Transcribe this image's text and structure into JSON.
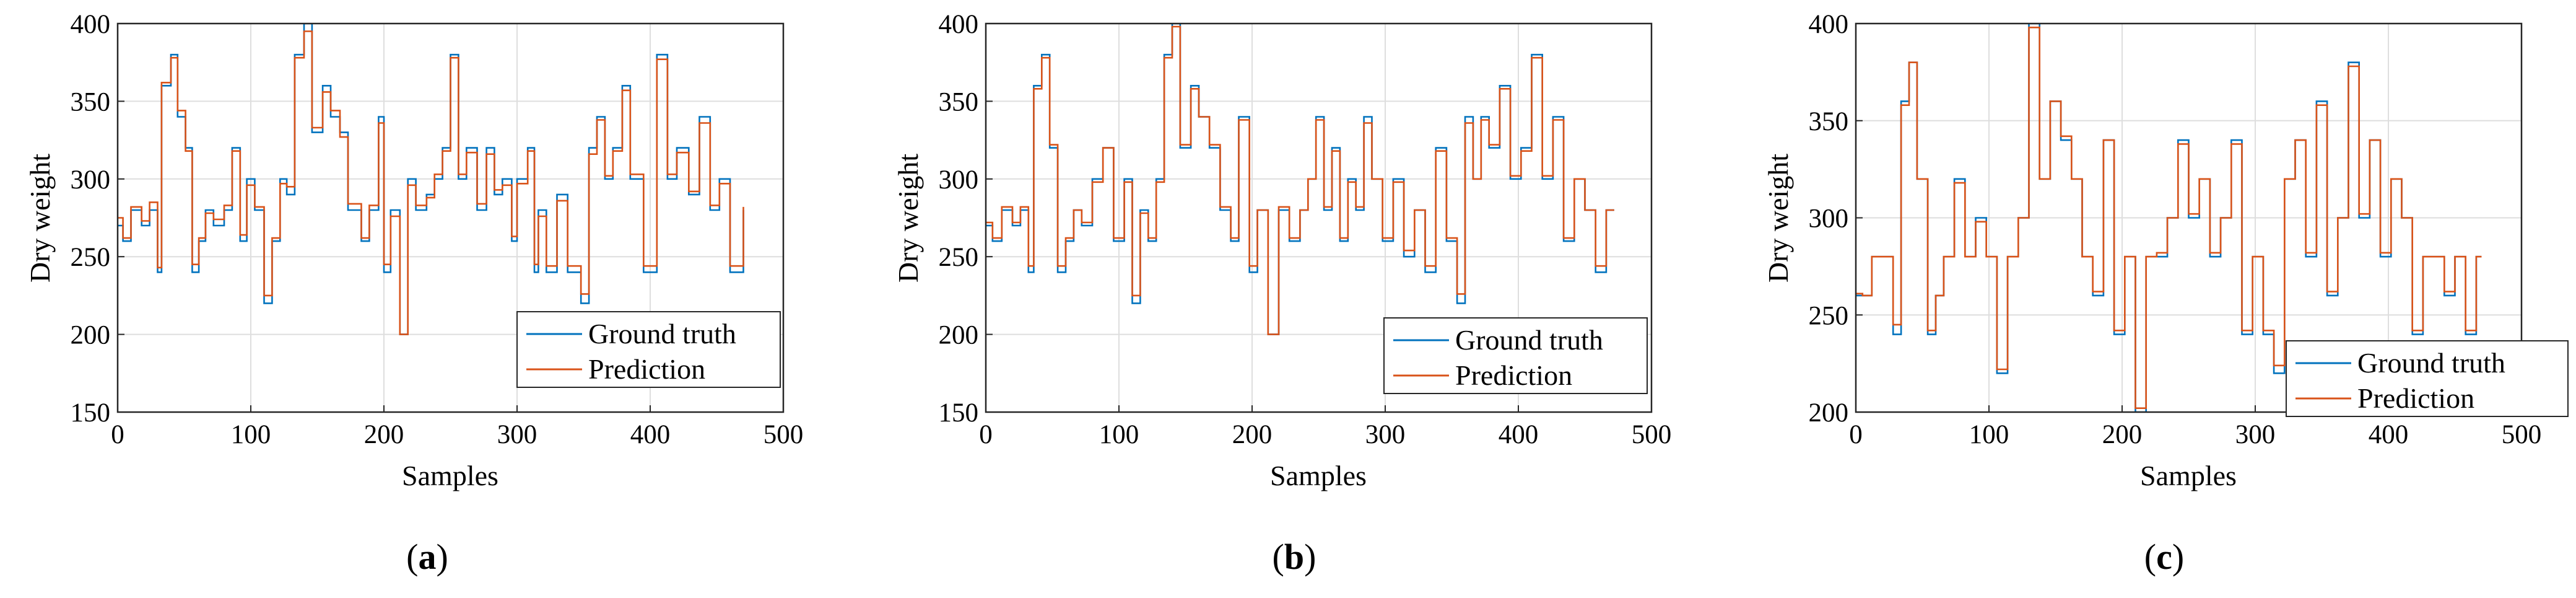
{
  "chart_data": [
    {
      "panel": "(a)",
      "type": "line",
      "xlabel": "Samples",
      "ylabel": "Dry weight",
      "xlim": [
        0,
        500
      ],
      "ylim": [
        150,
        400
      ],
      "xticks": [
        0,
        100,
        200,
        300,
        400,
        500
      ],
      "yticks": [
        150,
        200,
        250,
        300,
        350,
        400
      ],
      "grid": true,
      "legend_position": "bottom-right",
      "colors": {
        "Ground truth": "#0072BD",
        "Prediction": "#D95319"
      },
      "series": [
        {
          "name": "Ground truth",
          "x": [
            0,
            4,
            10,
            18,
            24,
            30,
            33,
            40,
            45,
            51,
            56,
            61,
            66,
            72,
            80,
            86,
            92,
            97,
            103,
            110,
            116,
            122,
            127,
            133,
            140,
            146,
            154,
            160,
            167,
            173,
            183,
            189,
            196,
            200,
            205,
            212,
            218,
            224,
            232,
            238,
            244,
            250,
            256,
            262,
            270,
            277,
            283,
            289,
            296,
            300,
            308,
            313,
            316,
            322,
            330,
            338,
            348,
            354,
            360,
            366,
            372,
            379,
            385,
            395,
            405,
            413,
            420,
            429,
            437,
            445,
            452,
            460,
            470
          ],
          "values": [
            270,
            260,
            280,
            270,
            280,
            240,
            360,
            380,
            340,
            320,
            240,
            260,
            280,
            270,
            280,
            320,
            260,
            300,
            280,
            220,
            260,
            300,
            290,
            380,
            400,
            330,
            360,
            340,
            330,
            280,
            260,
            280,
            340,
            240,
            280,
            200,
            300,
            280,
            290,
            300,
            320,
            380,
            300,
            320,
            280,
            320,
            290,
            300,
            260,
            300,
            320,
            240,
            280,
            240,
            290,
            240,
            220,
            320,
            340,
            300,
            320,
            360,
            300,
            240,
            380,
            300,
            320,
            290,
            340,
            280,
            300,
            240,
            280
          ]
        },
        {
          "name": "Prediction",
          "x": [
            0,
            4,
            10,
            18,
            24,
            30,
            33,
            40,
            45,
            51,
            56,
            61,
            66,
            72,
            80,
            86,
            92,
            97,
            103,
            110,
            116,
            122,
            127,
            133,
            140,
            146,
            154,
            160,
            167,
            173,
            183,
            189,
            196,
            200,
            205,
            212,
            218,
            224,
            232,
            238,
            244,
            250,
            256,
            262,
            270,
            277,
            283,
            289,
            296,
            300,
            308,
            313,
            316,
            322,
            330,
            338,
            348,
            354,
            360,
            366,
            372,
            379,
            385,
            395,
            405,
            413,
            420,
            429,
            437,
            445,
            452,
            460,
            470
          ],
          "values": [
            275,
            262,
            282,
            273,
            285,
            243,
            362,
            378,
            344,
            318,
            245,
            262,
            278,
            274,
            283,
            318,
            264,
            296,
            282,
            225,
            262,
            297,
            295,
            378,
            395,
            333,
            356,
            344,
            327,
            284,
            262,
            283,
            336,
            245,
            276,
            200,
            296,
            283,
            288,
            303,
            318,
            378,
            303,
            317,
            284,
            316,
            293,
            296,
            263,
            297,
            318,
            245,
            276,
            244,
            286,
            244,
            226,
            316,
            338,
            302,
            318,
            357,
            303,
            244,
            377,
            303,
            317,
            292,
            336,
            283,
            297,
            244,
            282
          ]
        }
      ]
    },
    {
      "panel": "(b)",
      "type": "line",
      "xlabel": "Samples",
      "ylabel": "Dry weight",
      "xlim": [
        0,
        500
      ],
      "ylim": [
        150,
        400
      ],
      "xticks": [
        0,
        100,
        200,
        300,
        400,
        500
      ],
      "yticks": [
        150,
        200,
        250,
        300,
        350,
        400
      ],
      "grid": true,
      "legend_position": "bottom-right",
      "colors": {
        "Ground truth": "#0072BD",
        "Prediction": "#D95319"
      },
      "series": [
        {
          "name": "Ground truth",
          "x": [
            0,
            5,
            12,
            20,
            26,
            32,
            36,
            42,
            48,
            54,
            60,
            66,
            72,
            80,
            88,
            96,
            104,
            110,
            116,
            122,
            128,
            134,
            140,
            146,
            154,
            160,
            168,
            176,
            184,
            190,
            198,
            204,
            212,
            220,
            228,
            236,
            242,
            248,
            254,
            260,
            266,
            272,
            278,
            284,
            290,
            298,
            306,
            314,
            322,
            330,
            338,
            346,
            354,
            360,
            366,
            372,
            378,
            386,
            394,
            402,
            410,
            418,
            426,
            434,
            442,
            450,
            458,
            466,
            472
          ],
          "values": [
            270,
            260,
            280,
            270,
            280,
            240,
            360,
            380,
            320,
            240,
            260,
            280,
            270,
            300,
            320,
            260,
            300,
            220,
            280,
            260,
            300,
            380,
            400,
            320,
            360,
            340,
            320,
            280,
            260,
            340,
            240,
            280,
            200,
            280,
            260,
            280,
            300,
            340,
            280,
            320,
            260,
            300,
            280,
            340,
            300,
            260,
            300,
            250,
            280,
            240,
            320,
            260,
            220,
            340,
            300,
            340,
            320,
            360,
            300,
            320,
            380,
            300,
            340,
            260,
            300,
            280,
            240,
            280,
            280
          ]
        },
        {
          "name": "Prediction",
          "x": [
            0,
            5,
            12,
            20,
            26,
            32,
            36,
            42,
            48,
            54,
            60,
            66,
            72,
            80,
            88,
            96,
            104,
            110,
            116,
            122,
            128,
            134,
            140,
            146,
            154,
            160,
            168,
            176,
            184,
            190,
            198,
            204,
            212,
            220,
            228,
            236,
            242,
            248,
            254,
            260,
            266,
            272,
            278,
            284,
            290,
            298,
            306,
            314,
            322,
            330,
            338,
            346,
            354,
            360,
            366,
            372,
            378,
            386,
            394,
            402,
            410,
            418,
            426,
            434,
            442,
            450,
            458,
            466,
            472
          ],
          "values": [
            272,
            262,
            282,
            272,
            282,
            244,
            358,
            378,
            322,
            244,
            262,
            280,
            272,
            298,
            320,
            262,
            298,
            225,
            278,
            262,
            298,
            378,
            398,
            322,
            358,
            340,
            322,
            282,
            262,
            338,
            244,
            280,
            200,
            282,
            262,
            280,
            300,
            338,
            282,
            318,
            262,
            298,
            282,
            336,
            300,
            262,
            298,
            254,
            280,
            244,
            318,
            262,
            226,
            336,
            300,
            338,
            322,
            358,
            302,
            318,
            378,
            302,
            338,
            262,
            300,
            280,
            244,
            280,
            280
          ]
        }
      ]
    },
    {
      "panel": "(c)",
      "type": "line",
      "xlabel": "Samples",
      "ylabel": "Dry weight",
      "xlim": [
        0,
        500
      ],
      "ylim": [
        200,
        400
      ],
      "xticks": [
        0,
        100,
        200,
        300,
        400,
        500
      ],
      "yticks": [
        200,
        250,
        300,
        350,
        400
      ],
      "grid": true,
      "legend_position": "bottom-right",
      "colors": {
        "Ground truth": "#0072BD",
        "Prediction": "#D95319"
      },
      "series": [
        {
          "name": "Ground truth",
          "x": [
            0,
            5,
            12,
            20,
            28,
            34,
            40,
            46,
            54,
            60,
            66,
            74,
            82,
            90,
            98,
            106,
            114,
            122,
            130,
            138,
            146,
            154,
            162,
            170,
            178,
            186,
            194,
            202,
            210,
            218,
            226,
            234,
            242,
            250,
            258,
            266,
            274,
            282,
            290,
            298,
            306,
            314,
            322,
            330,
            338,
            346,
            354,
            362,
            370,
            378,
            386,
            394,
            402,
            410,
            418,
            426,
            434,
            442,
            450,
            458,
            466,
            470
          ],
          "values": [
            260,
            260,
            280,
            280,
            240,
            360,
            380,
            320,
            240,
            260,
            280,
            320,
            280,
            300,
            280,
            220,
            280,
            300,
            400,
            320,
            360,
            340,
            320,
            280,
            260,
            340,
            240,
            280,
            200,
            280,
            280,
            300,
            340,
            300,
            320,
            280,
            300,
            340,
            240,
            280,
            240,
            220,
            320,
            340,
            280,
            360,
            260,
            300,
            380,
            300,
            340,
            280,
            320,
            300,
            240,
            280,
            280,
            260,
            280,
            240,
            280,
            280
          ]
        },
        {
          "name": "Prediction",
          "x": [
            0,
            5,
            12,
            20,
            28,
            34,
            40,
            46,
            54,
            60,
            66,
            74,
            82,
            90,
            98,
            106,
            114,
            122,
            130,
            138,
            146,
            154,
            162,
            170,
            178,
            186,
            194,
            202,
            210,
            218,
            226,
            234,
            242,
            250,
            258,
            266,
            274,
            282,
            290,
            298,
            306,
            314,
            322,
            330,
            338,
            346,
            354,
            362,
            370,
            378,
            386,
            394,
            402,
            410,
            418,
            426,
            434,
            442,
            450,
            458,
            466,
            470
          ],
          "values": [
            261,
            260,
            280,
            280,
            245,
            358,
            380,
            320,
            242,
            260,
            280,
            318,
            280,
            298,
            280,
            222,
            280,
            300,
            398,
            320,
            360,
            342,
            320,
            280,
            262,
            340,
            242,
            280,
            202,
            280,
            282,
            300,
            338,
            302,
            320,
            282,
            300,
            338,
            242,
            280,
            242,
            224,
            320,
            340,
            282,
            358,
            262,
            300,
            378,
            302,
            340,
            282,
            320,
            300,
            242,
            280,
            280,
            262,
            280,
            242,
            280,
            280
          ]
        }
      ]
    }
  ],
  "captions": [
    {
      "open": "(",
      "letter": "a",
      "close": ")"
    },
    {
      "open": "(",
      "letter": "b",
      "close": ")"
    },
    {
      "open": "(",
      "letter": "c",
      "close": ")"
    }
  ]
}
